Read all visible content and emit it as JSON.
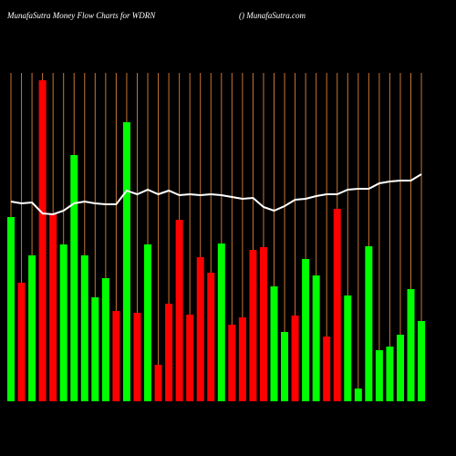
{
  "chart_data": {
    "type": "bar",
    "title": "MunafaSutra  Money Flow  Charts for WDRN",
    "subtitle": "() MunafaSutra.com",
    "values": [
      202,
      130,
      160,
      352,
      206,
      172,
      270,
      160,
      114,
      135,
      99,
      306,
      97,
      172,
      40,
      107,
      199,
      95,
      158,
      141,
      173,
      84,
      92,
      166,
      169,
      126,
      76,
      94,
      156,
      138,
      71,
      211,
      116,
      14,
      170,
      56,
      60,
      73,
      123,
      88
    ],
    "colors": [
      "#00ff00",
      "#ff0000",
      "#00ff00",
      "#ff0000",
      "#ff0000",
      "#00ff00",
      "#00ff00",
      "#00ff00",
      "#00ff00",
      "#00ff00",
      "#ff0000",
      "#00ff00",
      "#ff0000",
      "#00ff00",
      "#ff0000",
      "#ff0000",
      "#ff0000",
      "#ff0000",
      "#ff0000",
      "#ff0000",
      "#00ff00",
      "#ff0000",
      "#ff0000",
      "#ff0000",
      "#ff0000",
      "#00ff00",
      "#00ff00",
      "#ff0000",
      "#00ff00",
      "#00ff00",
      "#ff0000",
      "#ff0000",
      "#00ff00",
      "#00ff00",
      "#00ff00",
      "#00ff00",
      "#00ff00",
      "#00ff00",
      "#00ff00",
      "#00ff00"
    ],
    "line_values": [
      219,
      217,
      218,
      206,
      205,
      209,
      217,
      219,
      217,
      216,
      216,
      231,
      227,
      232,
      227,
      231,
      226,
      227,
      226,
      227,
      226,
      224,
      222,
      223,
      213,
      209,
      214,
      221,
      222,
      225,
      227,
      227,
      232,
      233,
      233,
      239,
      241,
      242,
      242,
      249
    ],
    "line_color": "#ffffff",
    "grid_color": "#c87533",
    "ylim": [
      0,
      360
    ]
  }
}
